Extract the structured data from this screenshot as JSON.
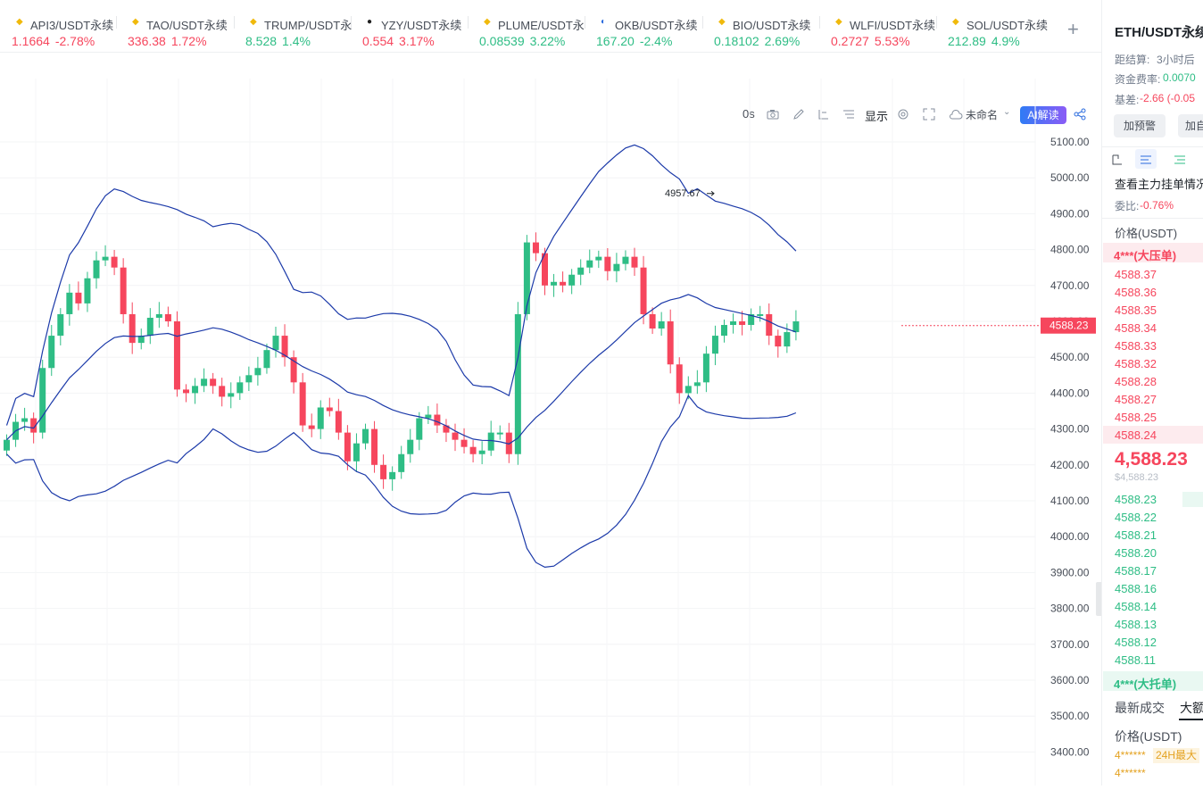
{
  "tickers": [
    {
      "name": "API3/USDT永续",
      "price": "1.1664",
      "change": "-2.78%",
      "dir": "dn",
      "icon": "binance-icon"
    },
    {
      "name": "TAO/USDT永续",
      "price": "336.38",
      "change": "1.72%",
      "dir": "dn",
      "icon": "binance-icon"
    },
    {
      "name": "TRUMP/USDT永",
      "price": "8.528",
      "change": "1.4%",
      "dir": "up",
      "icon": "binance-icon"
    },
    {
      "name": "YZY/USDT永续",
      "price": "0.554",
      "change": "3.17%",
      "dir": "dn",
      "icon": "okx-dark-icon"
    },
    {
      "name": "PLUME/USDT永",
      "price": "0.08539",
      "change": "3.22%",
      "dir": "up",
      "icon": "binance-icon"
    },
    {
      "name": "OKB/USDT永续",
      "price": "167.20",
      "change": "-2.4%",
      "dir": "up",
      "icon": "okb-icon"
    },
    {
      "name": "BIO/USDT永续",
      "price": "0.18102",
      "change": "2.69%",
      "dir": "up",
      "icon": "binance-icon"
    },
    {
      "name": "WLFI/USDT永续",
      "price": "0.2727",
      "change": "5.53%",
      "dir": "dn",
      "icon": "binance-icon"
    },
    {
      "name": "SOL/USDT永续",
      "price": "212.89",
      "change": "4.9%",
      "dir": "up",
      "icon": "binance-icon"
    }
  ],
  "toolbar": {
    "countdown": "0s",
    "display": "显示",
    "cloud_name": "未命名",
    "ai_button": "AI解读"
  },
  "chart": {
    "y_ticks": [
      "5100.00",
      "5000.00",
      "4900.00",
      "4800.00",
      "4700.00",
      "4600.00",
      "4500.00",
      "4400.00",
      "4300.00",
      "4200.00",
      "4100.00",
      "4000.00",
      "3900.00",
      "3800.00",
      "3700.00",
      "3600.00",
      "3500.00",
      "3400.00"
    ],
    "high_label": "4957.67",
    "current_price_label": "4588.23",
    "colors": {
      "up": "#2ebd85",
      "down": "#f6465d",
      "band": "#1c3aa9"
    }
  },
  "chart_data": {
    "type": "candlestick",
    "price_ylim": [
      3400,
      5100
    ],
    "highest_marker": 4957.67,
    "last_price": 4588.23,
    "candles_close_approx": [
      4270,
      4320,
      4330,
      4290,
      4470,
      4560,
      4620,
      4680,
      4650,
      4720,
      4770,
      4780,
      4750,
      4620,
      4540,
      4560,
      4610,
      4620,
      4600,
      4410,
      4400,
      4420,
      4440,
      4420,
      4390,
      4400,
      4430,
      4450,
      4470,
      4520,
      4560,
      4500,
      4430,
      4310,
      4300,
      4360,
      4350,
      4290,
      4210,
      4260,
      4300,
      4200,
      4160,
      4180,
      4230,
      4270,
      4330,
      4340,
      4310,
      4290,
      4270,
      4250,
      4230,
      4240,
      4290,
      4290,
      4230,
      4620,
      4820,
      4790,
      4700,
      4710,
      4700,
      4730,
      4750,
      4770,
      4780,
      4740,
      4760,
      4780,
      4750,
      4620,
      4580,
      4600,
      4480,
      4400,
      4420,
      4430,
      4510,
      4560,
      4590,
      4600,
      4590,
      4620,
      4620,
      4560,
      4530,
      4570,
      4600
    ],
    "bollinger_upper": "upper band",
    "bollinger_mid": "middle band",
    "bollinger_lower": "lower band"
  },
  "panel": {
    "title": "ETH/USDT永续",
    "settle_label": "距结算:",
    "settle_value": "3小时后",
    "funding_label": "资金费率:",
    "funding_value": "0.0070",
    "basis_label": "基差:",
    "basis_value": "-2.66 (-0.05",
    "alert_button": "加预警",
    "add_button": "加自",
    "main_orders": "查看主力挂单情况",
    "ratio_label": "委比:",
    "ratio_value": "-0.76%",
    "price_header": "价格(USDT)",
    "ask_big": "4***(大压单)",
    "asks": [
      "4588.37",
      "4588.36",
      "4588.35",
      "4588.34",
      "4588.33",
      "4588.32",
      "4588.28",
      "4588.27",
      "4588.25",
      "4588.24"
    ],
    "last_price": "4,588.23",
    "last_price_usd": "$4,588.23",
    "bids": [
      "4588.23",
      "4588.22",
      "4588.21",
      "4588.20",
      "4588.17",
      "4588.16",
      "4588.14",
      "4588.13",
      "4588.12",
      "4588.11"
    ],
    "bid_big": "4***(大托单)",
    "tab_latest": "最新成交",
    "tab_large": "大额",
    "price_header2": "价格(USDT)",
    "trade1": "4******",
    "trade1_tag": "24H最大",
    "trade2": "4******"
  }
}
